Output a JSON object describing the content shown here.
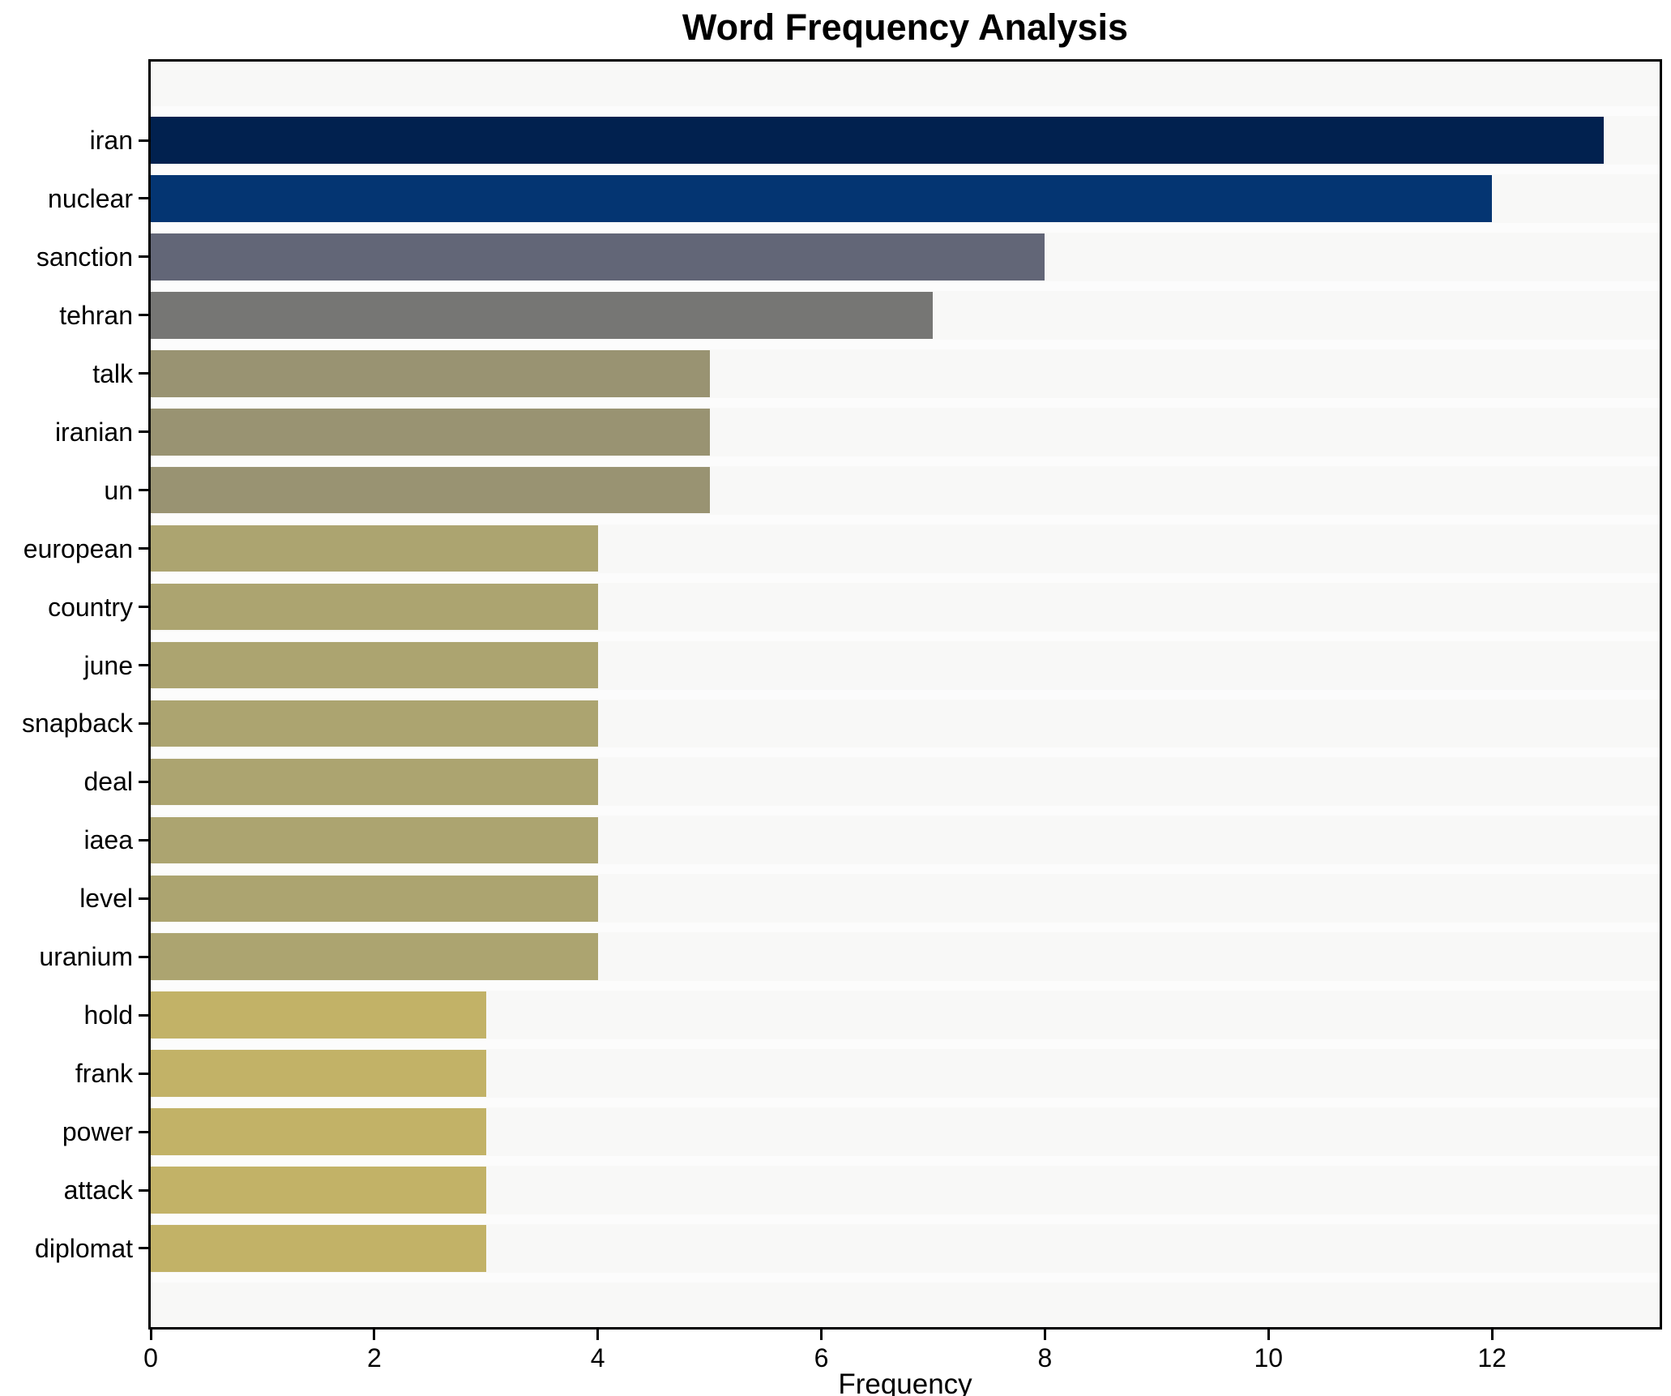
{
  "figure": {
    "background": "#ffffff"
  },
  "chart_data": {
    "type": "bar",
    "orientation": "horizontal",
    "title": "Word Frequency Analysis",
    "xlabel": "Frequency",
    "ylabel": "",
    "categories": [
      "iran",
      "nuclear",
      "sanction",
      "tehran",
      "talk",
      "iranian",
      "un",
      "european",
      "country",
      "june",
      "snapback",
      "deal",
      "iaea",
      "level",
      "uranium",
      "hold",
      "frank",
      "power",
      "attack",
      "diplomat"
    ],
    "values": [
      13,
      12,
      8,
      7,
      5,
      5,
      5,
      4,
      4,
      4,
      4,
      4,
      4,
      4,
      4,
      3,
      3,
      3,
      3,
      3
    ],
    "bar_colors": [
      "#01214f",
      "#043572",
      "#626677",
      "#767674",
      "#999372",
      "#999372",
      "#999372",
      "#aca470",
      "#aca470",
      "#aca470",
      "#aca470",
      "#aca470",
      "#aca470",
      "#aca470",
      "#aca470",
      "#c2b267",
      "#c2b267",
      "#c2b267",
      "#c2b267",
      "#c2b267"
    ],
    "x_tick_labels": [
      "0",
      "2",
      "4",
      "6",
      "8",
      "10",
      "12"
    ],
    "x_tick_values": [
      0,
      2,
      4,
      6,
      8,
      10,
      12
    ],
    "xlim": [
      0,
      13.5
    ],
    "grid": false,
    "legend": null,
    "plot_background": "#f8f8f7",
    "slot_band_color": "#fcfcfc",
    "spine_color": "#000000",
    "text_color": "#000000"
  }
}
